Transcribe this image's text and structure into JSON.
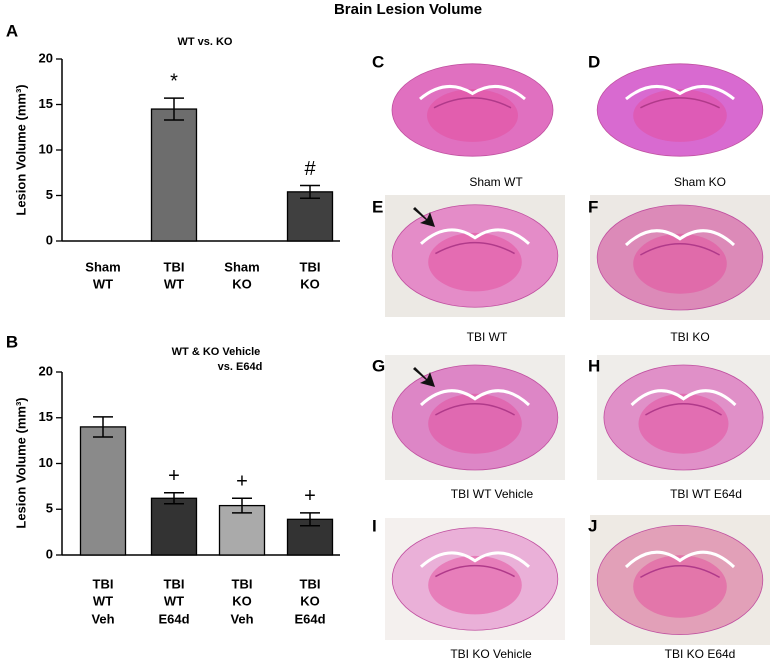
{
  "title": "Brain Lesion Volume",
  "chart_data": [
    {
      "type": "bar",
      "panel": "A",
      "title": [
        "WT vs. KO"
      ],
      "y_label": "Lesion Volume (mm³)",
      "categories": [
        [
          "Sham",
          "WT"
        ],
        [
          "TBI",
          "WT"
        ],
        [
          "Sham",
          "KO"
        ],
        [
          "TBI",
          "KO"
        ]
      ],
      "values": [
        0,
        14.5,
        0,
        5.4
      ],
      "errors": [
        null,
        1.2,
        null,
        0.7
      ],
      "markers": [
        null,
        "*",
        null,
        "#"
      ],
      "colors": [
        "#6d6d6d",
        "#6d6d6d",
        "#404040",
        "#404040"
      ],
      "ylim": [
        0,
        20
      ],
      "yticks": [
        0,
        5,
        10,
        15,
        20
      ]
    },
    {
      "type": "bar",
      "panel": "B",
      "title": [
        "WT & KO Vehicle",
        "vs. E64d"
      ],
      "y_label": "Lesion Volume (mm³)",
      "categories": [
        [
          "TBI",
          "WT",
          "Veh"
        ],
        [
          "TBI",
          "WT",
          "E64d"
        ],
        [
          "TBI",
          "KO",
          "Veh"
        ],
        [
          "TBI",
          "KO",
          "E64d"
        ]
      ],
      "values": [
        14.0,
        6.2,
        5.4,
        3.9
      ],
      "errors": [
        1.1,
        0.6,
        0.8,
        0.7
      ],
      "markers": [
        null,
        "+",
        "+",
        "+"
      ],
      "colors": [
        "#8a8a8a",
        "#333333",
        "#aaaaaa",
        "#333333"
      ],
      "ylim": [
        0,
        20
      ],
      "yticks": [
        0,
        5,
        10,
        15,
        20
      ]
    }
  ],
  "panels": [
    {
      "label": "C",
      "caption": "Sham WT"
    },
    {
      "label": "D",
      "caption": "Sham KO"
    },
    {
      "label": "E",
      "caption": "TBI WT"
    },
    {
      "label": "F",
      "caption": "TBI KO"
    },
    {
      "label": "G",
      "caption": "TBI WT Vehicle"
    },
    {
      "label": "H",
      "caption": "TBI WT E64d"
    },
    {
      "label": "I",
      "caption": "TBI KO Vehicle"
    },
    {
      "label": "J",
      "caption": "TBI KO E64d"
    }
  ]
}
